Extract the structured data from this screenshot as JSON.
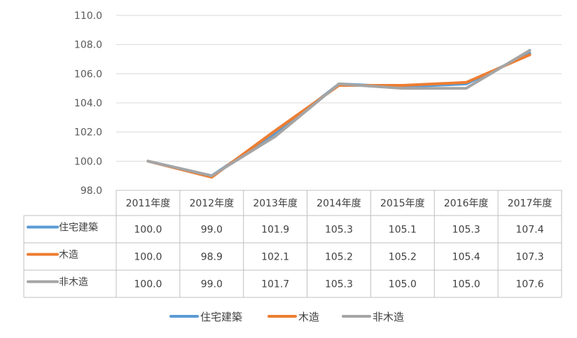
{
  "chart_data": {
    "type": "line",
    "categories": [
      "2011年度",
      "2012年度",
      "2013年度",
      "2014年度",
      "2015年度",
      "2016年度",
      "2017年度"
    ],
    "series": [
      {
        "name": "住宅建築",
        "color": "#5B9BD5",
        "values": [
          100.0,
          99.0,
          101.9,
          105.3,
          105.1,
          105.3,
          107.4
        ]
      },
      {
        "name": "木造",
        "color": "#ED7D31",
        "values": [
          100.0,
          98.9,
          102.1,
          105.2,
          105.2,
          105.4,
          107.3
        ]
      },
      {
        "name": "非木造",
        "color": "#A5A5A5",
        "values": [
          100.0,
          99.0,
          101.7,
          105.3,
          105.0,
          105.0,
          107.6
        ]
      }
    ],
    "ylim": [
      98.0,
      110.0
    ],
    "yticks": [
      "98.0",
      "100.0",
      "102.0",
      "104.0",
      "106.0",
      "108.0",
      "110.0"
    ],
    "table_values": [
      [
        "100.0",
        "99.0",
        "101.9",
        "105.3",
        "105.1",
        "105.3",
        "107.4"
      ],
      [
        "100.0",
        "98.9",
        "102.1",
        "105.2",
        "105.2",
        "105.4",
        "107.3"
      ],
      [
        "100.0",
        "99.0",
        "101.7",
        "105.3",
        "105.0",
        "105.0",
        "107.6"
      ]
    ],
    "grid": true,
    "legend": "bottom",
    "title": "",
    "xlabel": "",
    "ylabel": ""
  }
}
